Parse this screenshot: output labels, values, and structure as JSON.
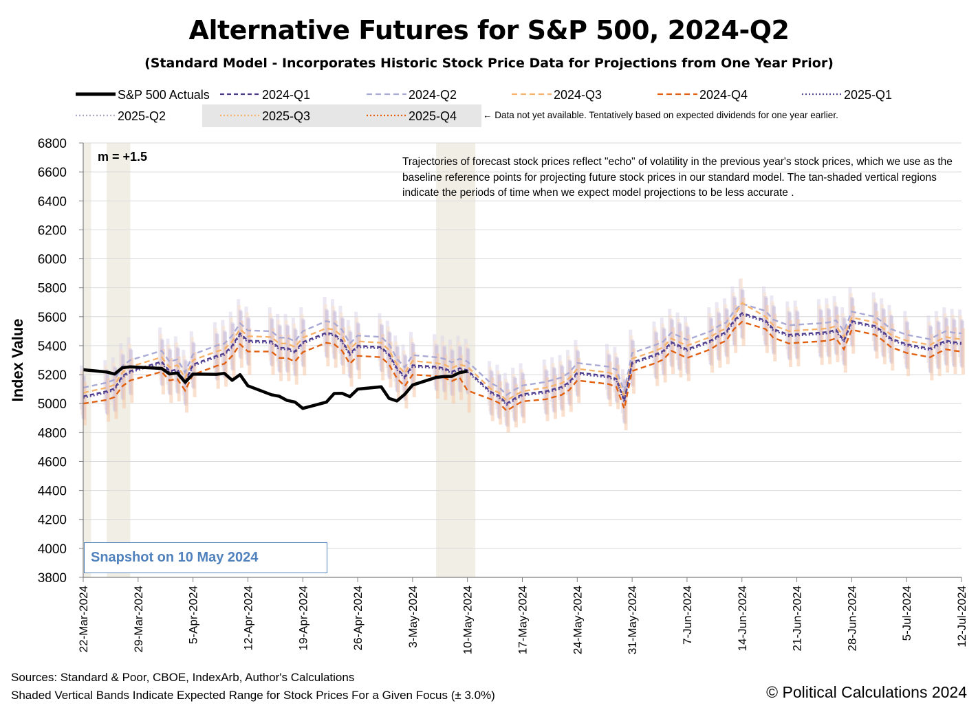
{
  "title": "Alternative Futures for S&P 500, 2024-Q2",
  "subtitle": "(Standard Model - Incorporates Historic Stock Price Data for Projections from One Year Prior)",
  "legend_note": "← Data not yet available.  Tentatively based on expected dividends for one year earlier.",
  "m_label": "m = +1.5",
  "annotation": "Trajectories of forecast stock prices reflect \"echo\" of volatility in  the previous year's stock prices, which we use as the baseline reference points for projecting future stock prices in our standard model.    The tan-shaded vertical regions indicate the periods of time when we expect model projections to be less accurate .",
  "snapshot": "Snapshot on 10 May 2024",
  "sources": "Sources: Standard & Poor, CBOE, IndexArb, Author's Calculations",
  "bands_note": "Shaded Vertical Bands Indicate Expected Range for Stock Prices For a Given Focus (± 3.0%)",
  "copyright": "© Political Calculations 2024",
  "colors": {
    "actuals": "#000000",
    "q2024_1": "#4b3a8c",
    "q2024_2": "#a9a9d6",
    "q2024_3": "#f6b26b",
    "q2024_4": "#e06010",
    "q2025_1": "#5a4a9a",
    "q2025_2": "#a8a8c0",
    "q2025_3": "#f6b26b",
    "q2025_4": "#e06010",
    "tan": "#ece9dc",
    "grid": "#d9d9d9"
  },
  "chart_data": {
    "type": "line",
    "ylabel": "Index Value",
    "ylim": [
      3800,
      6800
    ],
    "yticks": [
      3800,
      4000,
      4200,
      4400,
      4600,
      4800,
      5000,
      5200,
      5400,
      5600,
      5800,
      6000,
      6200,
      6400,
      6600,
      6800
    ],
    "x_start": "2024-03-22",
    "x_end": "2024-07-12",
    "xtick_labels": [
      "22-Mar-2024",
      "29-Mar-2024",
      "5-Apr-2024",
      "12-Apr-2024",
      "19-Apr-2024",
      "26-Apr-2024",
      "3-May-2024",
      "10-May-2024",
      "17-May-2024",
      "24-May-2024",
      "31-May-2024",
      "7-Jun-2024",
      "14-Jun-2024",
      "21-Jun-2024",
      "28-Jun-2024",
      "5-Jul-2024",
      "12-Jul-2024"
    ],
    "tan_regions": [
      [
        "2024-03-22",
        "2024-03-23"
      ],
      [
        "2024-03-25",
        "2024-03-28"
      ],
      [
        "2024-05-06",
        "2024-05-11"
      ]
    ],
    "band_pct": 3.0,
    "legend": [
      {
        "name": "S&P 500 Actuals",
        "style": "solid"
      },
      {
        "name": "2024-Q1",
        "style": "dashed"
      },
      {
        "name": "2024-Q2",
        "style": "dashed"
      },
      {
        "name": "2024-Q3",
        "style": "dashed"
      },
      {
        "name": "2024-Q4",
        "style": "dashed"
      },
      {
        "name": "2025-Q1",
        "style": "dotted"
      },
      {
        "name": "2025-Q2",
        "style": "dotted"
      },
      {
        "name": "2025-Q3",
        "style": "dotted"
      },
      {
        "name": "2025-Q4",
        "style": "dotted"
      }
    ],
    "actuals": {
      "name": "S&P 500 Actuals",
      "dates": [
        "2024-03-22",
        "2024-03-25",
        "2024-03-26",
        "2024-03-27",
        "2024-03-28",
        "2024-04-01",
        "2024-04-02",
        "2024-04-03",
        "2024-04-04",
        "2024-04-05",
        "2024-04-08",
        "2024-04-09",
        "2024-04-10",
        "2024-04-11",
        "2024-04-12",
        "2024-04-15",
        "2024-04-16",
        "2024-04-17",
        "2024-04-18",
        "2024-04-19",
        "2024-04-22",
        "2024-04-23",
        "2024-04-24",
        "2024-04-25",
        "2024-04-26",
        "2024-04-29",
        "2024-04-30",
        "2024-05-01",
        "2024-05-02",
        "2024-05-03",
        "2024-05-06",
        "2024-05-07",
        "2024-05-08",
        "2024-05-09",
        "2024-05-10"
      ],
      "values": [
        5234,
        5218,
        5204,
        5248,
        5254,
        5243,
        5205,
        5211,
        5147,
        5204,
        5202,
        5209,
        5161,
        5200,
        5123,
        5061,
        5051,
        5022,
        5011,
        4967,
        5010,
        5070,
        5071,
        5048,
        5100,
        5116,
        5036,
        5018,
        5064,
        5128,
        5181,
        5187,
        5188,
        5214,
        5223
      ]
    },
    "forecast_dates": [
      "2024-03-22",
      "2024-03-25",
      "2024-03-26",
      "2024-03-27",
      "2024-03-28",
      "2024-04-01",
      "2024-04-02",
      "2024-04-03",
      "2024-04-04",
      "2024-04-05",
      "2024-04-08",
      "2024-04-09",
      "2024-04-10",
      "2024-04-11",
      "2024-04-12",
      "2024-04-15",
      "2024-04-16",
      "2024-04-17",
      "2024-04-18",
      "2024-04-19",
      "2024-04-22",
      "2024-04-23",
      "2024-04-24",
      "2024-04-25",
      "2024-04-26",
      "2024-04-29",
      "2024-04-30",
      "2024-05-01",
      "2024-05-02",
      "2024-05-03",
      "2024-05-06",
      "2024-05-07",
      "2024-05-08",
      "2024-05-09",
      "2024-05-10",
      "2024-05-13",
      "2024-05-14",
      "2024-05-15",
      "2024-05-16",
      "2024-05-17",
      "2024-05-20",
      "2024-05-21",
      "2024-05-22",
      "2024-05-23",
      "2024-05-24",
      "2024-05-28",
      "2024-05-29",
      "2024-05-30",
      "2024-05-31",
      "2024-06-03",
      "2024-06-04",
      "2024-06-05",
      "2024-06-06",
      "2024-06-07",
      "2024-06-10",
      "2024-06-11",
      "2024-06-12",
      "2024-06-13",
      "2024-06-14",
      "2024-06-17",
      "2024-06-18",
      "2024-06-20",
      "2024-06-21",
      "2024-06-24",
      "2024-06-25",
      "2024-06-26",
      "2024-06-27",
      "2024-06-28",
      "2024-07-01",
      "2024-07-02",
      "2024-07-03",
      "2024-07-05",
      "2024-07-08",
      "2024-07-09",
      "2024-07-10",
      "2024-07-11",
      "2024-07-12"
    ],
    "series": [
      {
        "name": "2024-Q2",
        "values": [
          5110,
          5145,
          5165,
          5260,
          5300,
          5365,
          5290,
          5305,
          5215,
          5340,
          5400,
          5415,
          5470,
          5555,
          5505,
          5500,
          5455,
          5455,
          5430,
          5500,
          5570,
          5555,
          5510,
          5415,
          5470,
          5460,
          5410,
          5310,
          5250,
          5335,
          5320,
          5310,
          5285,
          5310,
          5290,
          5140,
          5115,
          5060,
          5095,
          5125,
          5150,
          5165,
          5180,
          5215,
          5280,
          5255,
          5235,
          5085,
          5350,
          5405,
          5430,
          5490,
          5465,
          5440,
          5500,
          5535,
          5560,
          5640,
          5690,
          5640,
          5580,
          5540,
          5545,
          5555,
          5560,
          5575,
          5500,
          5635,
          5600,
          5560,
          5515,
          5475,
          5445,
          5475,
          5500,
          5490,
          5485
        ]
      },
      {
        "name": "2024-Q3",
        "values": [
          5075,
          5110,
          5130,
          5215,
          5255,
          5320,
          5250,
          5265,
          5175,
          5300,
          5360,
          5375,
          5430,
          5515,
          5465,
          5460,
          5415,
          5415,
          5390,
          5455,
          5520,
          5510,
          5465,
          5375,
          5430,
          5420,
          5370,
          5270,
          5210,
          5295,
          5280,
          5270,
          5245,
          5270,
          5255,
          5100,
          5075,
          5020,
          5055,
          5085,
          5110,
          5125,
          5140,
          5175,
          5240,
          5215,
          5195,
          5045,
          5310,
          5365,
          5390,
          5450,
          5425,
          5400,
          5460,
          5495,
          5520,
          5600,
          5695,
          5600,
          5540,
          5500,
          5505,
          5515,
          5520,
          5535,
          5460,
          5595,
          5560,
          5520,
          5475,
          5435,
          5405,
          5435,
          5460,
          5450,
          5445
        ]
      },
      {
        "name": "2024-Q1",
        "values": [
          5050,
          5085,
          5105,
          5190,
          5225,
          5290,
          5225,
          5235,
          5150,
          5270,
          5330,
          5345,
          5400,
          5485,
          5435,
          5430,
          5385,
          5385,
          5360,
          5425,
          5490,
          5480,
          5435,
          5345,
          5400,
          5390,
          5340,
          5245,
          5185,
          5265,
          5255,
          5245,
          5220,
          5245,
          5230,
          5080,
          5055,
          5000,
          5035,
          5065,
          5085,
          5100,
          5115,
          5150,
          5215,
          5190,
          5170,
          5020,
          5285,
          5340,
          5365,
          5425,
          5400,
          5375,
          5435,
          5470,
          5495,
          5575,
          5625,
          5575,
          5515,
          5475,
          5480,
          5490,
          5495,
          5510,
          5435,
          5570,
          5535,
          5495,
          5450,
          5410,
          5380,
          5410,
          5435,
          5425,
          5420
        ]
      },
      {
        "name": "2025-Q1",
        "values": [
          5040,
          5075,
          5095,
          5180,
          5215,
          5280,
          5215,
          5225,
          5140,
          5260,
          5320,
          5335,
          5390,
          5475,
          5425,
          5420,
          5375,
          5375,
          5350,
          5415,
          5480,
          5470,
          5425,
          5335,
          5390,
          5380,
          5330,
          5235,
          5175,
          5255,
          5245,
          5235,
          5210,
          5235,
          5220,
          5070,
          5045,
          4990,
          5025,
          5055,
          5075,
          5090,
          5105,
          5140,
          5205,
          5180,
          5160,
          5010,
          5275,
          5330,
          5355,
          5415,
          5390,
          5365,
          5425,
          5460,
          5485,
          5565,
          5615,
          5565,
          5505,
          5465,
          5470,
          5480,
          5485,
          5500,
          5425,
          5560,
          5525,
          5485,
          5440,
          5400,
          5370,
          5400,
          5425,
          5415,
          5410
        ]
      },
      {
        "name": "2024-Q4",
        "values": [
          5000,
          5025,
          5045,
          5120,
          5160,
          5220,
          5160,
          5170,
          5090,
          5200,
          5260,
          5275,
          5330,
          5410,
          5360,
          5360,
          5315,
          5315,
          5290,
          5355,
          5420,
          5410,
          5365,
          5275,
          5330,
          5320,
          5270,
          5175,
          5120,
          5200,
          5190,
          5180,
          5155,
          5180,
          5090,
          5030,
          5005,
          4950,
          4985,
          5015,
          5030,
          5045,
          5060,
          5095,
          5160,
          5135,
          5115,
          4965,
          5225,
          5280,
          5305,
          5365,
          5340,
          5315,
          5375,
          5410,
          5435,
          5515,
          5565,
          5515,
          5455,
          5415,
          5420,
          5430,
          5435,
          5450,
          5375,
          5510,
          5475,
          5435,
          5390,
          5350,
          5320,
          5350,
          5375,
          5365,
          5360
        ]
      }
    ]
  }
}
